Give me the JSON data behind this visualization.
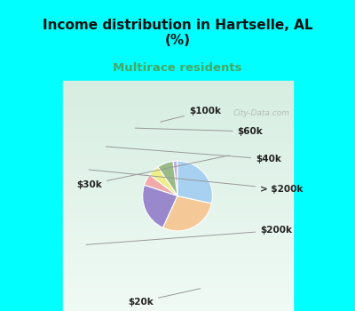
{
  "title": "Income distribution in Hartselle, AL\n(%)",
  "subtitle": "Multirace residents",
  "title_fontsize": 11,
  "subtitle_fontsize": 9.5,
  "subtitle_color": "#44aa66",
  "background_color": "#00ffff",
  "chart_bg_top": "#f0faf8",
  "chart_bg_bottom": "#d8f0e0",
  "labels": [
    "$100k",
    "$60k",
    "$40k",
    "> $200k",
    "$200k",
    "$20k",
    "$30k"
  ],
  "values": [
    2.0,
    7.0,
    5.0,
    5.0,
    22.0,
    27.0,
    27.0
  ],
  "colors": [
    "#c4b0e0",
    "#99bb88",
    "#eeee88",
    "#f0aaaa",
    "#9988cc",
    "#f5c898",
    "#a8d0f0"
  ],
  "startangle": 90,
  "label_fontsize": 7.5,
  "watermark": "City-Data.com"
}
